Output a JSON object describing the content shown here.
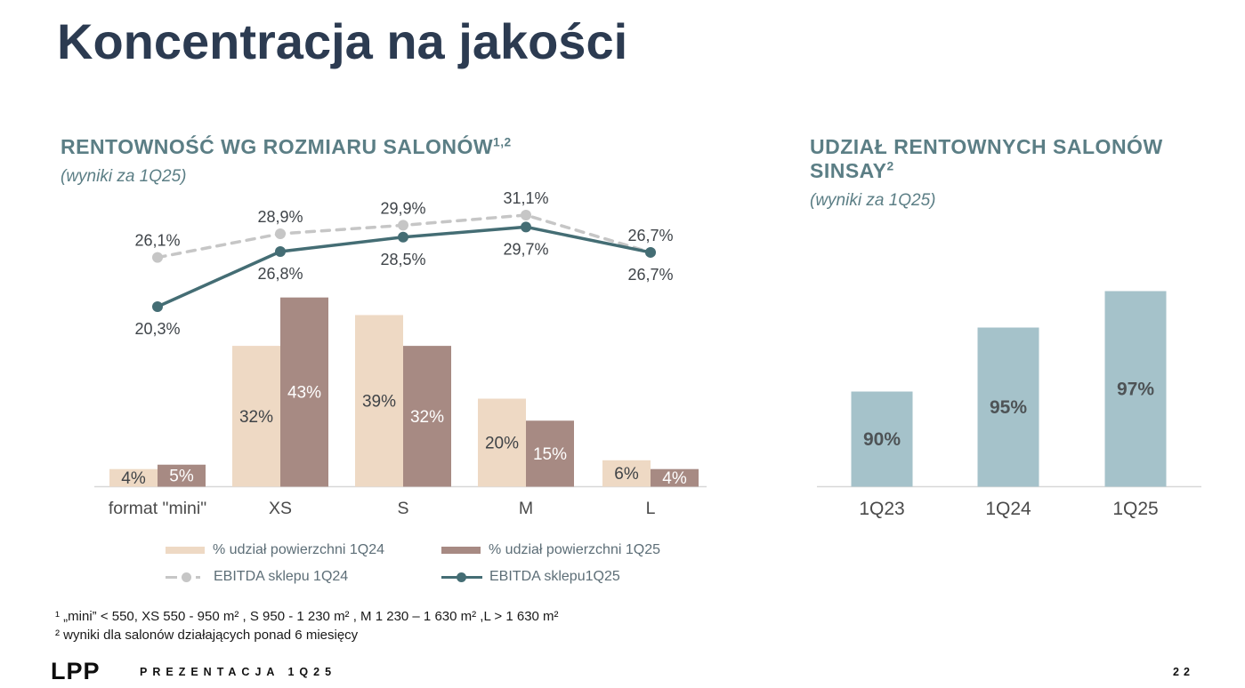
{
  "slide": {
    "title": "Koncentracja na jakości",
    "footer": {
      "logo": "LPP",
      "label": "PREZENTACJA 1Q25",
      "page_number": "22"
    }
  },
  "footnotes": {
    "line1": "¹ „mini” < 550, XS 550 - 950 m² , S 950 - 1 230 m² , M 1 230 – 1 630 m² ,L > 1 630 m²",
    "line2": "² wyniki dla salonów działających ponad 6 miesięcy"
  },
  "colors": {
    "main_title": "#2c3b51",
    "chart_title": "#5b7e85",
    "axis": "#d8d8d8",
    "category_label": "#4a4a4a",
    "data_label": "#3f4449"
  },
  "chart_data": [
    {
      "type": "combo_bar_line",
      "title": "RENTOWNOŚĆ WG ROZMIARU SALONÓW",
      "title_sup": "1,2",
      "subtitle": "(wyniki za 1Q25)",
      "categories": [
        "format \"mini\"",
        "XS",
        "S",
        "M",
        "L"
      ],
      "bar_ylim": [
        0,
        50
      ],
      "line_ylim": [
        18,
        33
      ],
      "legend_position": "bottom",
      "grid": false,
      "series": [
        {
          "name": "% udział powierzchni 1Q24",
          "type": "bar",
          "color": "#eed9c4",
          "label_color": "#3f4347",
          "values": [
            4,
            32,
            39,
            20,
            6
          ],
          "labels": [
            "4%",
            "32%",
            "39%",
            "20%",
            "6%"
          ]
        },
        {
          "name": "% udział powierzchni 1Q25",
          "type": "bar",
          "color": "#a78a83",
          "label_color": "#ffffff",
          "values": [
            5,
            43,
            32,
            15,
            4
          ],
          "labels": [
            "5%",
            "43%",
            "32%",
            "15%",
            "4%"
          ]
        },
        {
          "name": "EBITDA sklepu 1Q24",
          "type": "line",
          "style": "dashed",
          "color": "#c6c6c6",
          "label_placement": "above",
          "values": [
            26.1,
            28.9,
            29.9,
            31.1,
            26.7
          ],
          "labels": [
            "26,1%",
            "28,9%",
            "29,9%",
            "31,1%",
            "26,7%"
          ]
        },
        {
          "name": "EBITDA sklepu1Q25",
          "type": "line",
          "style": "solid",
          "color": "#446d74",
          "label_placement": "below",
          "values": [
            20.3,
            26.8,
            28.5,
            29.7,
            26.7
          ],
          "labels": [
            "20,3%",
            "26,8%",
            "28,5%",
            "29,7%",
            "26,7%"
          ]
        }
      ]
    },
    {
      "type": "bar",
      "title": "UDZIAŁ RENTOWNYCH SALONÓW SINSAY",
      "title_sup": "2",
      "subtitle": "(wyniki za 1Q25)",
      "categories": [
        "1Q23",
        "1Q24",
        "1Q25"
      ],
      "values": [
        90,
        95,
        97
      ],
      "labels": [
        "90%",
        "95%",
        "97%"
      ],
      "color": "#a5c2ca",
      "label_color": "#4e5356",
      "ylim": [
        82,
        100
      ],
      "grid": false
    }
  ]
}
